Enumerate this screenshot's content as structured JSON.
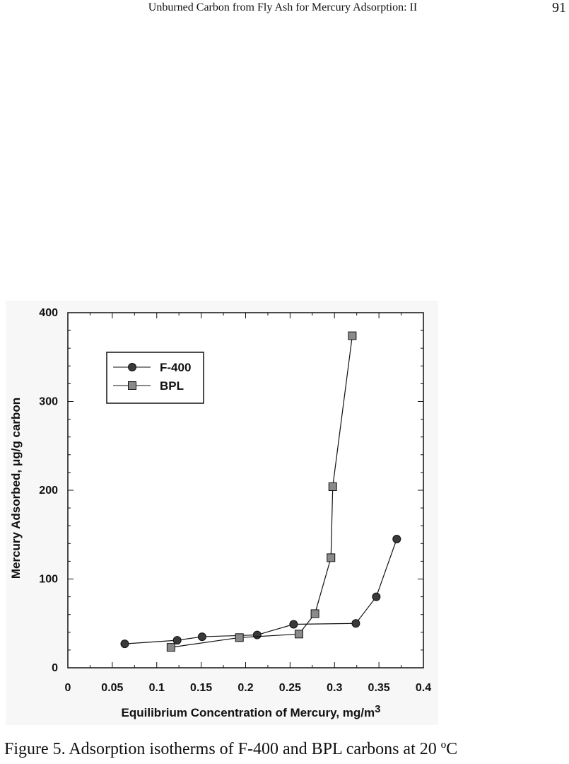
{
  "header": {
    "running_title": "Unburned Carbon from Fly Ash for Mercury Adsorption: II",
    "page_number": "91"
  },
  "chart_data": {
    "type": "line",
    "x_label": {
      "text": "Equilibrium Concentration of Mercury, mg/m",
      "superscript": "3"
    },
    "y_label": "Mercury Adsorbed, μg/g carbon",
    "xlim": [
      0,
      0.4
    ],
    "xticks": [
      0,
      0.05,
      0.1,
      0.15,
      0.2,
      0.25,
      0.3,
      0.35,
      0.4
    ],
    "ylim": [
      0,
      400
    ],
    "yticks": [
      0,
      100,
      200,
      300,
      400
    ],
    "legend": "upper left",
    "series": [
      {
        "name": "F-400",
        "marker": "circle",
        "color": "#3a3a3a",
        "x": [
          0.064,
          0.123,
          0.151,
          0.213,
          0.254,
          0.324,
          0.347,
          0.37
        ],
        "values": [
          27,
          31,
          35,
          37,
          49,
          50,
          80,
          145
        ]
      },
      {
        "name": "BPL",
        "marker": "square",
        "color": "#8a8a8a",
        "x": [
          0.116,
          0.193,
          0.26,
          0.278,
          0.296,
          0.298,
          0.32
        ],
        "values": [
          23,
          34,
          38,
          61,
          124,
          204,
          374
        ]
      }
    ]
  },
  "caption": "Figure 5. Adsorption isotherms of F-400 and BPL carbons at 20 ºC"
}
